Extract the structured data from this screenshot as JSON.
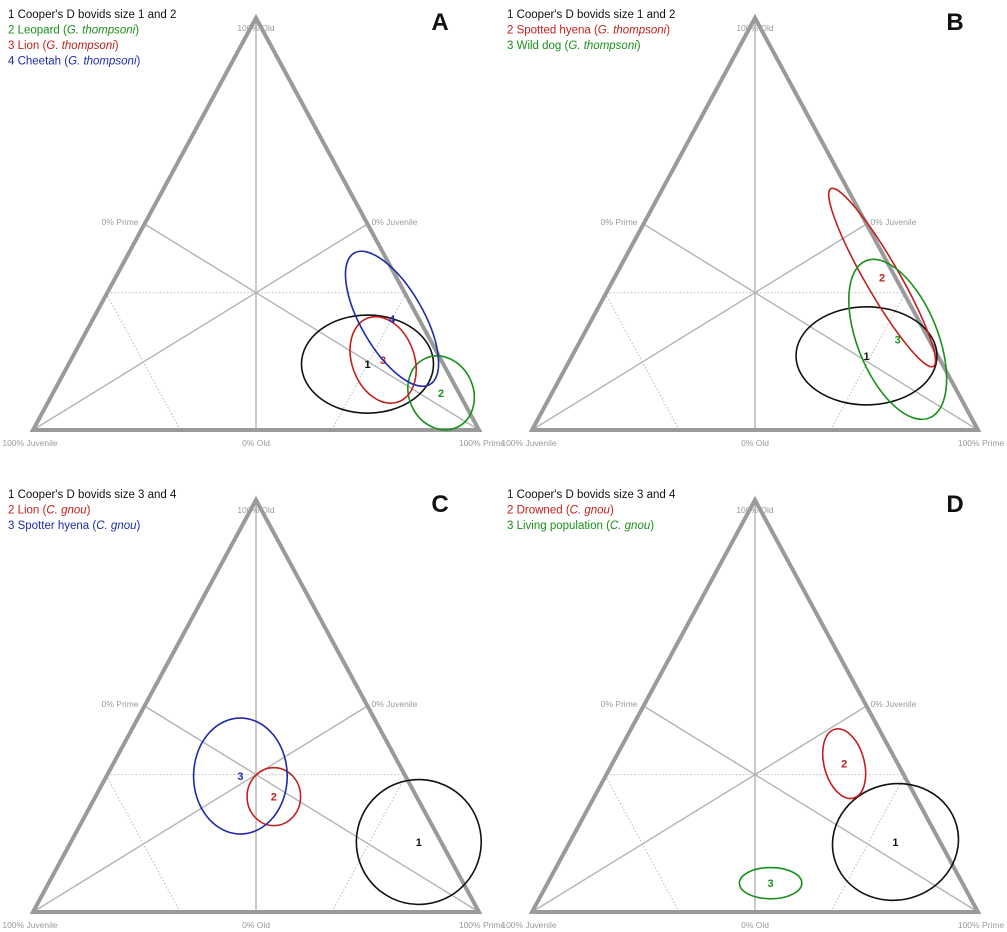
{
  "colors": {
    "black": "#111111",
    "green": "#1a8f1a",
    "red": "#c0201e",
    "blue": "#1e2aa8",
    "frame": "#9a9a9a",
    "grid": "#b3b3b3"
  },
  "vertex_labels": {
    "top": "100% Old",
    "bottom_left": "100% Juvenile",
    "bottom_right": "100% Prime",
    "bottom_mid": "0% Old",
    "left_mid": "0% Prime",
    "right_mid": "0% Juvenile"
  },
  "panels": [
    {
      "label": "A",
      "legend": [
        {
          "num": "1",
          "text": "Cooper's D bovids size 1 and 2",
          "species": "",
          "color": "black"
        },
        {
          "num": "2",
          "text": "Leopard",
          "species": "G. thompsoni",
          "color": "green"
        },
        {
          "num": "3",
          "text": "Lion",
          "species": "G. thompsoni",
          "color": "red"
        },
        {
          "num": "4",
          "text": "Cheetah",
          "species": "G. thompsoni",
          "color": "blue"
        }
      ],
      "regions": [
        {
          "num": "1",
          "color": "black",
          "juvenile": 0.17,
          "prime": 0.67,
          "old": 0.16,
          "rx": 0.148,
          "ry": 0.11,
          "rot": 0
        },
        {
          "num": "2",
          "color": "green",
          "juvenile": 0.04,
          "prime": 0.87,
          "old": 0.09,
          "rx": 0.072,
          "ry": 0.085,
          "rot": -25
        },
        {
          "num": "3",
          "color": "red",
          "juvenile": 0.13,
          "prime": 0.7,
          "old": 0.17,
          "rx": 0.07,
          "ry": 0.1,
          "rot": -20
        },
        {
          "num": "4",
          "color": "blue",
          "juvenile": 0.06,
          "prime": 0.67,
          "old": 0.27,
          "rx": 0.07,
          "ry": 0.17,
          "rot": -30
        }
      ]
    },
    {
      "label": "B",
      "legend": [
        {
          "num": "1",
          "text": "Cooper's D bovids size 1 and 2",
          "species": "",
          "color": "black"
        },
        {
          "num": "2",
          "text": "Spotted hyena",
          "species": "G. thompsoni",
          "color": "red"
        },
        {
          "num": "3",
          "text": "Wild dog",
          "species": "G. thompsoni",
          "color": "green"
        }
      ],
      "regions": [
        {
          "num": "1",
          "color": "black",
          "juvenile": 0.16,
          "prime": 0.66,
          "old": 0.18,
          "rx": 0.158,
          "ry": 0.11,
          "rot": 0
        },
        {
          "num": "2",
          "color": "red",
          "juvenile": 0.03,
          "prime": 0.6,
          "old": 0.37,
          "rx": 0.038,
          "ry": 0.23,
          "rot": -30
        },
        {
          "num": "3",
          "color": "green",
          "juvenile": 0.07,
          "prime": 0.71,
          "old": 0.22,
          "rx": 0.09,
          "ry": 0.19,
          "rot": -22
        }
      ]
    },
    {
      "label": "C",
      "legend": [
        {
          "num": "1",
          "text": "Cooper's D bovids size 3 and 4",
          "species": "",
          "color": "black"
        },
        {
          "num": "2",
          "text": "Lion",
          "species": "C. gnou",
          "color": "red"
        },
        {
          "num": "3",
          "text": "Spotter hyena",
          "species": "C. gnou",
          "color": "blue"
        }
      ],
      "regions": [
        {
          "num": "1",
          "color": "black",
          "juvenile": 0.05,
          "prime": 0.78,
          "old": 0.17,
          "rx": 0.14,
          "ry": 0.14,
          "rot": -20
        },
        {
          "num": "2",
          "color": "red",
          "juvenile": 0.32,
          "prime": 0.4,
          "old": 0.28,
          "rx": 0.06,
          "ry": 0.065,
          "rot": 0
        },
        {
          "num": "3",
          "color": "blue",
          "juvenile": 0.37,
          "prime": 0.3,
          "old": 0.33,
          "rx": 0.105,
          "ry": 0.13,
          "rot": 0
        }
      ]
    },
    {
      "label": "D",
      "legend": [
        {
          "num": "1",
          "text": "Cooper's D bovids size 3 and 4",
          "species": "",
          "color": "black"
        },
        {
          "num": "2",
          "text": "Drowned",
          "species": "C. gnou",
          "color": "red"
        },
        {
          "num": "3",
          "text": "Living population",
          "species": "C. gnou",
          "color": "green"
        }
      ],
      "regions": [
        {
          "num": "1",
          "color": "black",
          "juvenile": 0.1,
          "prime": 0.73,
          "old": 0.17,
          "rx": 0.142,
          "ry": 0.13,
          "rot": -15
        },
        {
          "num": "2",
          "color": "red",
          "juvenile": 0.12,
          "prime": 0.52,
          "old": 0.36,
          "rx": 0.045,
          "ry": 0.08,
          "rot": -15
        },
        {
          "num": "3",
          "color": "green",
          "juvenile": 0.43,
          "prime": 0.5,
          "old": 0.07,
          "rx": 0.07,
          "ry": 0.035,
          "rot": 0
        }
      ]
    }
  ]
}
